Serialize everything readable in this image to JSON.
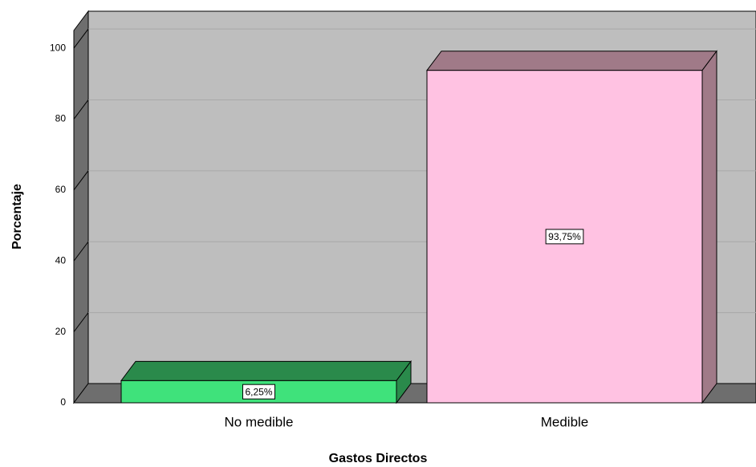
{
  "chart_data": {
    "type": "bar3d",
    "categories": [
      "No medible",
      "Medible"
    ],
    "values": [
      6.25,
      93.75
    ],
    "value_labels": [
      "6,25%",
      "93,75%"
    ],
    "colors": [
      "#3fe27b",
      "#ffc2e2"
    ],
    "shade_colors": [
      "#2a8a4b",
      "#a07a88"
    ],
    "xlabel": "Gastos Directos",
    "ylabel": "Porcentaje",
    "ylim": [
      0,
      105
    ],
    "yticks": [
      0,
      20,
      40,
      60,
      80,
      100
    ],
    "grid": true
  }
}
